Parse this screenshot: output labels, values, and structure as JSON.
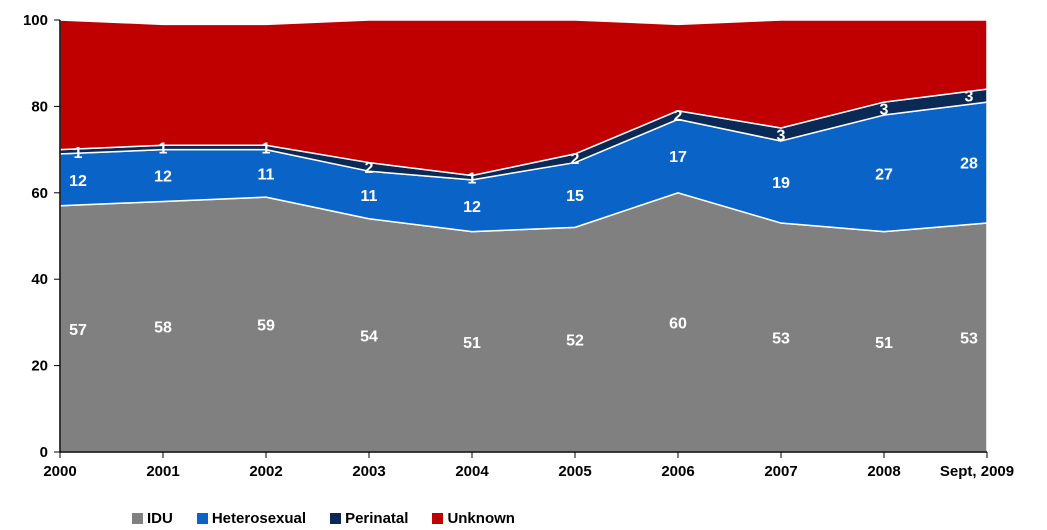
{
  "chart_data": {
    "type": "area",
    "stacked": true,
    "categories": [
      "2000",
      "2001",
      "2002",
      "2003",
      "2004",
      "2005",
      "2006",
      "2007",
      "2008",
      "Sept, 2009"
    ],
    "ylim": [
      0,
      100
    ],
    "yticks": [
      0,
      20,
      40,
      60,
      80,
      100
    ],
    "grid": false,
    "legend_position": "bottom-left",
    "series": [
      {
        "name": "IDU",
        "color": "#808080",
        "values": [
          57,
          58,
          59,
          54,
          51,
          52,
          60,
          53,
          51,
          53
        ]
      },
      {
        "name": "Heterosexual",
        "color": "#0a64c8",
        "values": [
          12,
          12,
          11,
          11,
          12,
          15,
          17,
          19,
          27,
          28
        ]
      },
      {
        "name": "Perinatal",
        "color": "#0a2a55",
        "values": [
          1,
          1,
          1,
          2,
          1,
          2,
          2,
          3,
          3,
          3
        ]
      },
      {
        "name": "Unknown",
        "color": "#c00000",
        "values": [
          30,
          28,
          28,
          33,
          36,
          31,
          20,
          25,
          19,
          16
        ]
      }
    ],
    "data_labels": {
      "IDU": [
        "57",
        "58",
        "59",
        "54",
        "51",
        "52",
        "60",
        "53",
        "51",
        "53"
      ],
      "Heterosexual": [
        "12",
        "12",
        "11",
        "11",
        "12",
        "15",
        "17",
        "19",
        "27",
        "28"
      ],
      "Perinatal": [
        "1",
        "1",
        "1",
        "2",
        "1",
        "2",
        "2",
        "3",
        "3",
        "3"
      ]
    }
  }
}
